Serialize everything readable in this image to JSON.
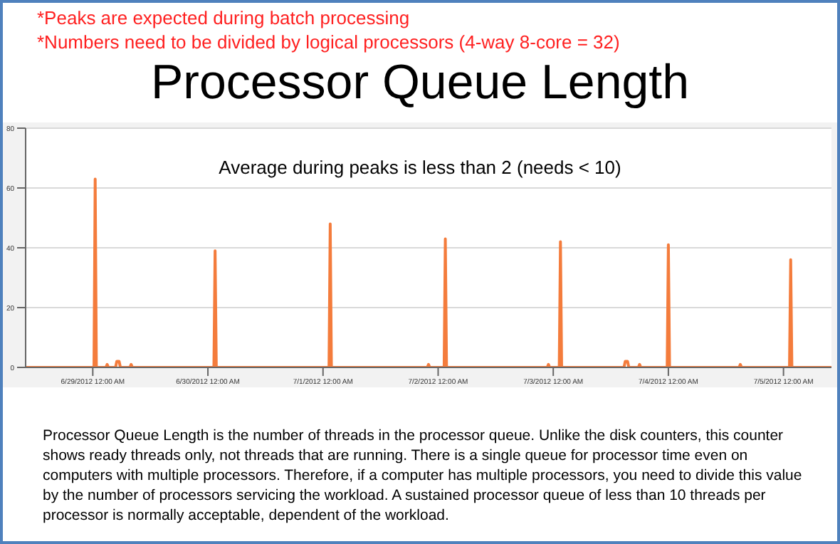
{
  "chart_data": {
    "type": "line",
    "title": "Processor Queue Length",
    "annotations": [
      "*Peaks are expected during batch processing",
      "*Numbers need to be divided by logical processors (4-way 8-core = 32)",
      "Average during peaks is less than 2 (needs < 10)",
      "Processor Queue Length is the number of threads in the processor queue.  Unlike the disk counters, this counter shows ready threads only, not threads that are running.  There is a single queue for processor time even on computers with multiple processors. Therefore, if a computer has multiple processors, you need to divide this value by the number of processors servicing the workload. A sustained processor queue of less than 10 threads per processor is normally acceptable, dependent of the workload."
    ],
    "x": [
      "2012-06-28T10:00",
      "2012-06-29T00:15",
      "2012-06-29T00:30",
      "2012-06-29T00:45",
      "2012-06-29T02:45",
      "2012-06-29T03:00",
      "2012-06-29T03:15",
      "2012-06-29T04:45",
      "2012-06-29T05:00",
      "2012-06-29T05:30",
      "2012-06-29T05:45",
      "2012-06-29T07:45",
      "2012-06-29T08:00",
      "2012-06-29T08:15",
      "2012-06-30T01:15",
      "2012-06-30T01:30",
      "2012-06-30T01:45",
      "2012-07-01T01:15",
      "2012-07-01T01:30",
      "2012-07-01T01:45",
      "2012-07-01T21:45",
      "2012-07-01T22:00",
      "2012-07-01T22:15",
      "2012-07-02T01:15",
      "2012-07-02T01:30",
      "2012-07-02T01:45",
      "2012-07-02T22:45",
      "2012-07-02T23:00",
      "2012-07-02T23:15",
      "2012-07-03T01:15",
      "2012-07-03T01:30",
      "2012-07-03T01:45",
      "2012-07-03T14:45",
      "2012-07-03T15:00",
      "2012-07-03T15:30",
      "2012-07-03T15:45",
      "2012-07-03T17:45",
      "2012-07-03T18:00",
      "2012-07-03T18:15",
      "2012-07-03T23:45",
      "2012-07-04T00:00",
      "2012-07-04T00:15",
      "2012-07-04T14:45",
      "2012-07-04T15:00",
      "2012-07-04T15:15",
      "2012-07-05T01:15",
      "2012-07-05T01:30",
      "2012-07-05T01:45",
      "2012-07-05T10:00"
    ],
    "series": [
      {
        "color": "#f47c3c",
        "values": [
          0,
          0,
          63,
          0,
          0,
          1,
          0,
          0,
          2,
          2,
          0,
          0,
          1,
          0,
          0,
          39,
          0,
          0,
          48,
          0,
          0,
          1,
          0,
          0,
          43,
          0,
          0,
          1,
          0,
          0,
          42,
          0,
          0,
          2,
          2,
          0,
          0,
          1,
          0,
          0,
          41,
          0,
          0,
          1,
          0,
          0,
          36,
          0,
          0
        ]
      }
    ],
    "xlim": [
      "2012-06-28T10:00",
      "2012-07-05T10:00"
    ],
    "xticks": [
      {
        "value": "2012-06-29",
        "label": "6/29/2012 12:00 AM"
      },
      {
        "value": "2012-06-30",
        "label": "6/30/2012 12:00 AM"
      },
      {
        "value": "2012-07-01",
        "label": "7/1/2012 12:00 AM"
      },
      {
        "value": "2012-07-02",
        "label": "7/2/2012 12:00 AM"
      },
      {
        "value": "2012-07-03",
        "label": "7/3/2012 12:00 AM"
      },
      {
        "value": "2012-07-04",
        "label": "7/4/2012 12:00 AM"
      },
      {
        "value": "2012-07-05",
        "label": "7/5/2012 12:00 AM"
      }
    ],
    "ylim": [
      0,
      80
    ],
    "yticks": [
      0,
      20,
      40,
      60,
      80
    ],
    "grid": "y",
    "marker": "none",
    "line_style": "solid"
  }
}
